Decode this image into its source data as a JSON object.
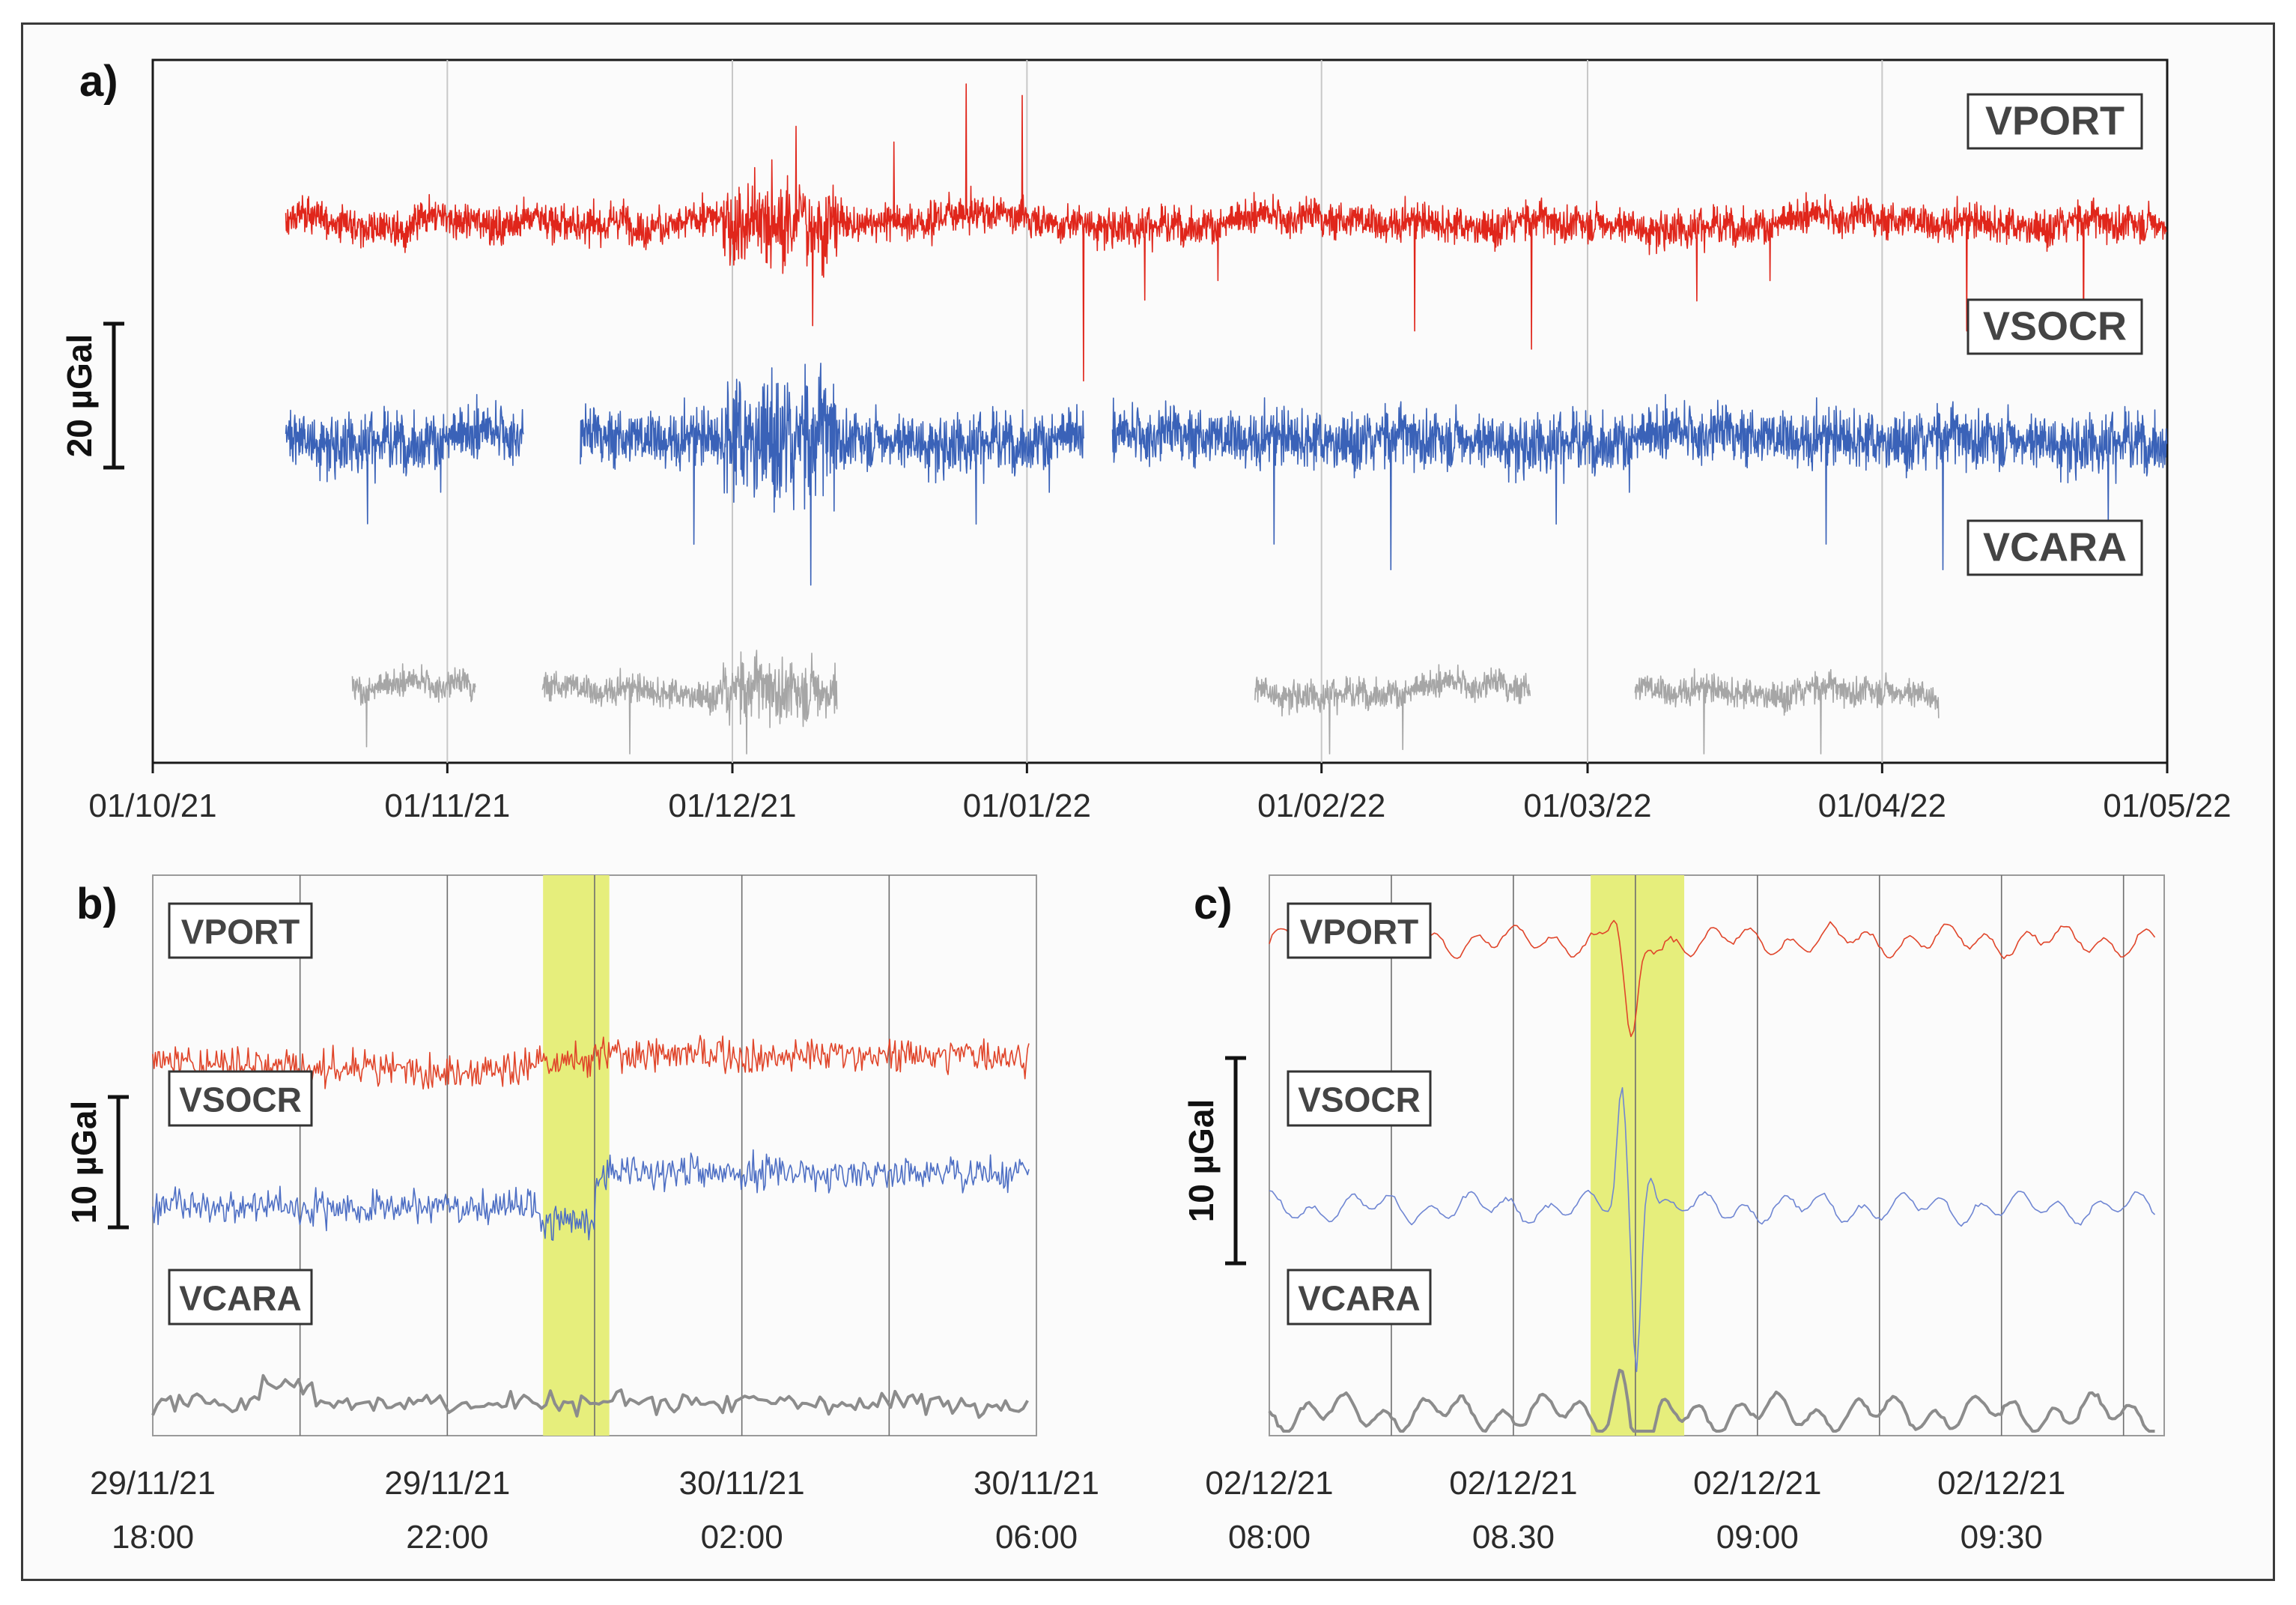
{
  "chart_data": [
    {
      "panel": "a)",
      "type": "line",
      "x_tick_labels": [
        "01/10/21",
        "01/11/21",
        "01/12/21",
        "01/01/22",
        "01/02/22",
        "01/03/22",
        "01/04/22",
        "01/05/22"
      ],
      "xlim_days": [
        0,
        212
      ],
      "scale_bar_label": "20 µGal",
      "scale_bar_ugal": 20,
      "series": [
        {
          "name": "VPORT",
          "color": "#e0261b",
          "segments_days": [
            [
              14,
              212
            ]
          ],
          "offset_ugal": 30,
          "noise_ugal": 2.5
        },
        {
          "name": "VSOCR",
          "color": "#3a62b8",
          "segments_days": [
            [
              14,
              39
            ],
            [
              45,
              98
            ],
            [
              101,
              212
            ]
          ],
          "offset_ugal": 0,
          "noise_ugal": 4
        },
        {
          "name": "VCARA",
          "color": "#a6a6a6",
          "segments_days": [
            [
              21,
              34
            ],
            [
              41,
              72
            ],
            [
              116,
              145
            ],
            [
              156,
              188
            ]
          ],
          "offset_ugal": -35,
          "noise_ugal": 2
        }
      ]
    },
    {
      "panel": "b)",
      "type": "line",
      "x_tick_labels": [
        [
          "29/11/21",
          "18:00"
        ],
        [
          "29/11/21",
          "22:00"
        ],
        [
          "30/11/21",
          "02:00"
        ],
        [
          "30/11/21",
          "06:00"
        ]
      ],
      "xlim_hours": [
        0,
        12
      ],
      "highlight_hours": [
        5.3,
        6.2
      ],
      "scale_bar_label": "10 µGal",
      "scale_bar_ugal": 10,
      "series": [
        {
          "name": "VPORT",
          "color": "#e0452a",
          "offset_ugal": 11
        },
        {
          "name": "VSOCR",
          "color": "#4e6fc4",
          "offset_ugal": 0
        },
        {
          "name": "VCARA",
          "color": "#8c8c8c",
          "offset_ugal": -15
        }
      ]
    },
    {
      "panel": "c)",
      "type": "line",
      "x_tick_labels": [
        [
          "02/12/21",
          "08:00"
        ],
        [
          "02/12/21",
          "08.30"
        ],
        [
          "02/12/21",
          "09:00"
        ],
        [
          "02/12/21",
          "09:30"
        ]
      ],
      "xlim_minutes": [
        0,
        110
      ],
      "highlight_minutes": [
        39.5,
        51
      ],
      "scale_bar_label": "10 µGal",
      "scale_bar_ugal": 10,
      "series": [
        {
          "name": "VPORT",
          "color": "#e0452a",
          "offset_ugal": 13
        },
        {
          "name": "VSOCR",
          "color": "#6f86d3",
          "offset_ugal": 0
        },
        {
          "name": "VCARA",
          "color": "#8c8c8c",
          "offset_ugal": -10
        }
      ]
    }
  ]
}
